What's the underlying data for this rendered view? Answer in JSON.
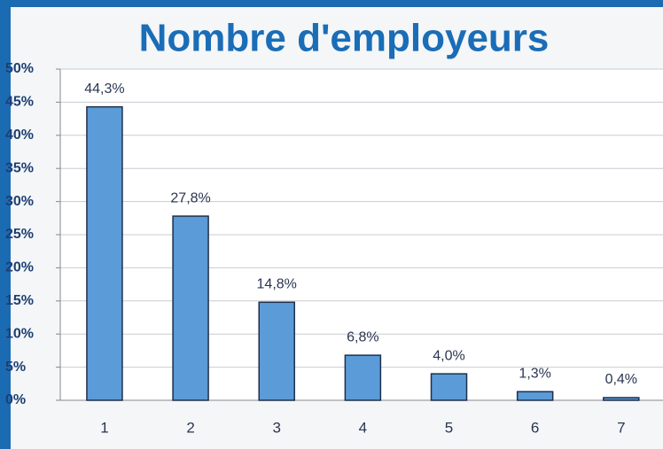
{
  "chart_data": {
    "type": "bar",
    "title": "Nombre d'employeurs",
    "categories": [
      "1",
      "2",
      "3",
      "4",
      "5",
      "6",
      "7"
    ],
    "values": [
      44.3,
      27.8,
      14.8,
      6.8,
      4.0,
      1.3,
      0.4
    ],
    "value_labels": [
      "44,3%",
      "27,8%",
      "14,8%",
      "6,8%",
      "4,0%",
      "1,3%",
      "0,4%"
    ],
    "color": "#5b9bd8",
    "ylim": [
      0,
      50
    ],
    "yticks": [
      {
        "value": 0,
        "label": "0%"
      },
      {
        "value": 5,
        "label": "5%"
      },
      {
        "value": 10,
        "label": "10%"
      },
      {
        "value": 15,
        "label": "15%"
      },
      {
        "value": 20,
        "label": "20%"
      },
      {
        "value": 25,
        "label": "25%"
      },
      {
        "value": 30,
        "label": "30%"
      },
      {
        "value": 35,
        "label": "35%"
      },
      {
        "value": 40,
        "label": "40%"
      },
      {
        "value": 45,
        "label": "45%"
      },
      {
        "value": 50,
        "label": "50%"
      }
    ],
    "grid": true
  }
}
